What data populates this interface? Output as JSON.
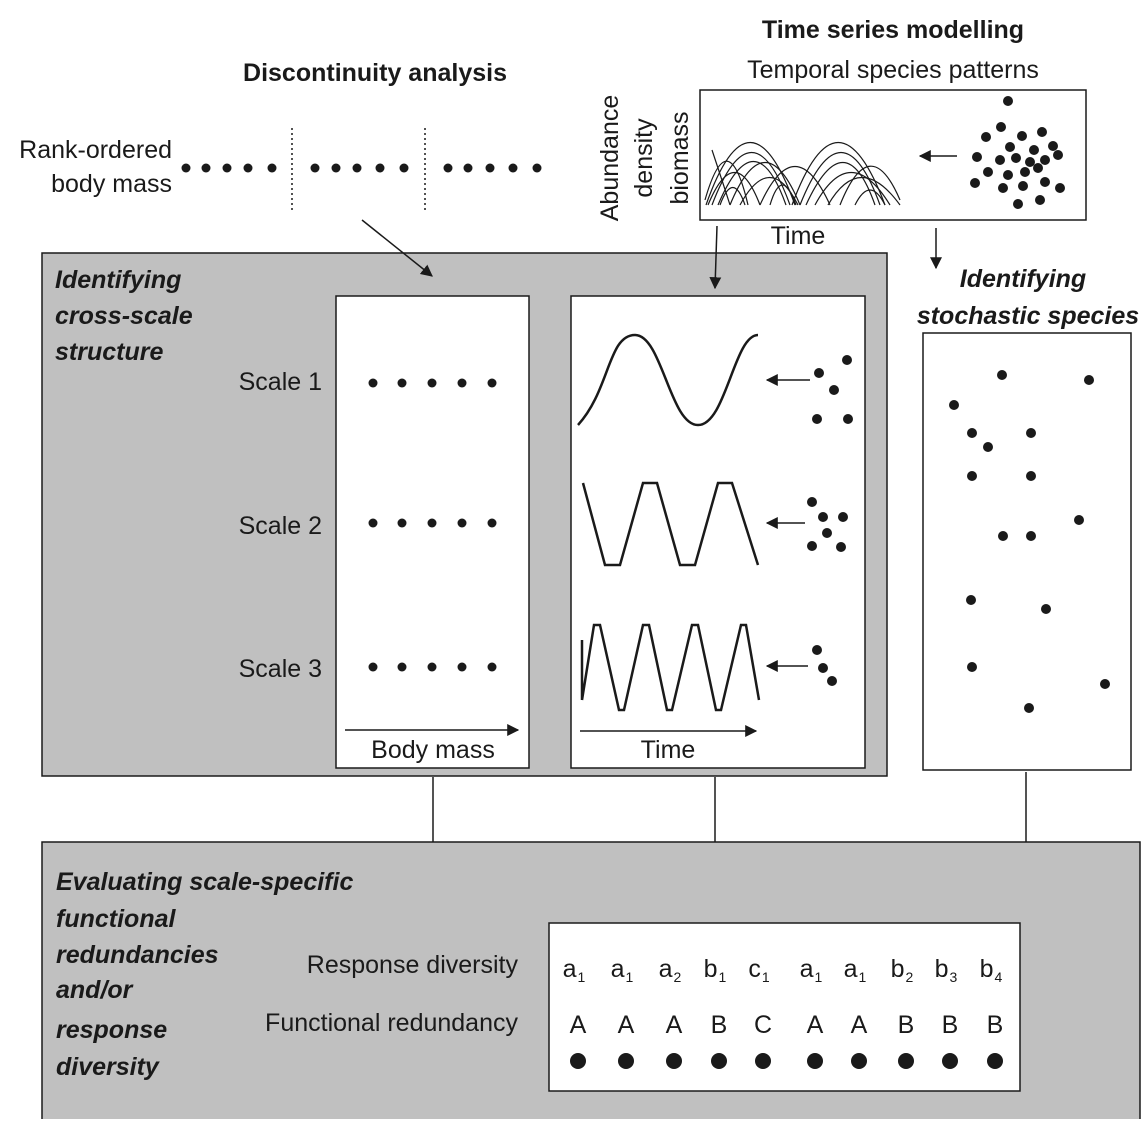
{
  "top": {
    "discontinuity_title": "Discontinuity analysis",
    "timeseries_title": "Time series modelling",
    "timeseries_subtitle": "Temporal species patterns",
    "rank_label_line1": "Rank-ordered",
    "rank_label_line2": "body mass",
    "ts_axis_y_line1": "Abundance",
    "ts_axis_y_line2": "density",
    "ts_axis_y_line3": "biomass",
    "ts_axis_x": "Time"
  },
  "cross_scale": {
    "heading_line1": "Identifying",
    "heading_line2": "cross-scale",
    "heading_line3": "structure",
    "scales": [
      "Scale 1",
      "Scale 2",
      "Scale 3"
    ],
    "body_mass_axis": "Body mass",
    "time_axis": "Time"
  },
  "stochastic": {
    "heading_line1": "Identifying",
    "heading_line2": "stochastic species"
  },
  "evaluation": {
    "heading_lines": [
      "Evaluating scale-specific",
      "functional",
      "redundancies",
      "and/or",
      "response",
      "diversity"
    ],
    "response_diversity_label": "Response diversity",
    "functional_redundancy_label": "Functional redundancy",
    "response_diversity": [
      {
        "base": "a",
        "sub": "1"
      },
      {
        "base": "a",
        "sub": "1"
      },
      {
        "base": "a",
        "sub": "2"
      },
      {
        "base": "b",
        "sub": "1"
      },
      {
        "base": "c",
        "sub": "1"
      },
      {
        "base": "a",
        "sub": "1"
      },
      {
        "base": "a",
        "sub": "1"
      },
      {
        "base": "b",
        "sub": "2"
      },
      {
        "base": "b",
        "sub": "3"
      },
      {
        "base": "b",
        "sub": "4"
      }
    ],
    "functional_redundancy": [
      "A",
      "A",
      "A",
      "B",
      "C",
      "A",
      "A",
      "B",
      "B",
      "B"
    ]
  },
  "colors": {
    "panel_gray": "#c0c0c0",
    "ink": "#1a1a1a",
    "white": "#ffffff"
  }
}
